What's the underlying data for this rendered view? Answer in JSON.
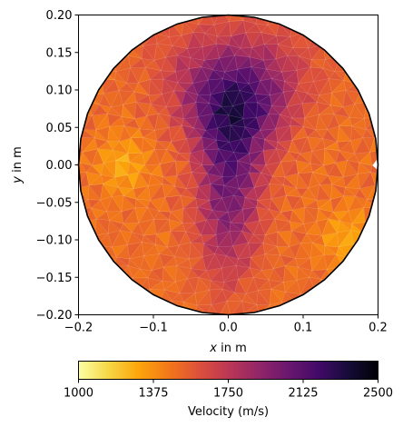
{
  "chart_data": {
    "type": "heatmap",
    "description_kind": "triangulated velocity field on a circular domain",
    "xlabel_var": "x",
    "xlabel_rest": " in m",
    "ylabel_var": "y",
    "ylabel_rest": " in m",
    "xlim": [
      -0.2,
      0.2
    ],
    "ylim": [
      -0.2,
      0.2
    ],
    "xticks": [
      -0.2,
      -0.1,
      0.0,
      0.1,
      0.2
    ],
    "xtick_labels": [
      "−0.2",
      "−0.1",
      "0.0",
      "0.1",
      "0.2"
    ],
    "yticks": [
      0.2,
      0.15,
      0.1,
      0.05,
      0.0,
      -0.05,
      -0.1,
      -0.15,
      -0.2
    ],
    "ytick_labels": [
      "0.20",
      "0.15",
      "0.10",
      "0.05",
      "0.00",
      "−0.05",
      "−0.10",
      "−0.15",
      "−0.20"
    ],
    "domain_radius": 0.2,
    "domain_center": [
      0.0,
      0.0
    ],
    "colorbar": {
      "label": "Velocity (m/s)",
      "min": 1000,
      "max": 2500,
      "ticks": [
        1000,
        1375,
        1750,
        2125,
        2500
      ],
      "tick_labels": [
        "1000",
        "1375",
        "1750",
        "2125",
        "2500"
      ],
      "colormap": "inferno_r"
    },
    "field_features": [
      {
        "kind": "low_velocity_background",
        "value": 1500
      },
      {
        "kind": "high_velocity_anomaly_upper",
        "center": [
          0.01,
          0.08
        ],
        "value": 2250
      },
      {
        "kind": "high_velocity_channel_lower",
        "center": [
          0.0,
          -0.05
        ],
        "value": 2000
      },
      {
        "kind": "slow_spot_left",
        "center": [
          -0.14,
          0.0
        ],
        "value": 1300
      },
      {
        "kind": "slow_spot_right",
        "center": [
          0.16,
          -0.1
        ],
        "value": 1300
      }
    ]
  }
}
